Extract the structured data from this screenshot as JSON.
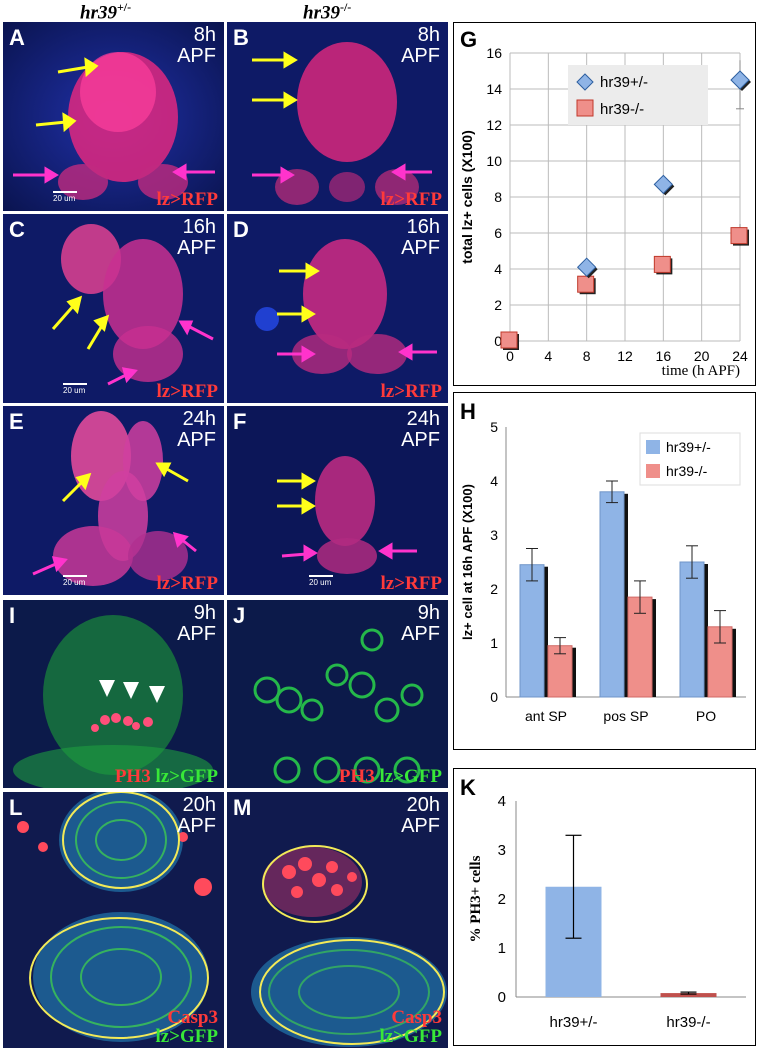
{
  "headers": {
    "left": "hr39",
    "left_sup": "+/-",
    "right": "hr39",
    "right_sup": "-/-"
  },
  "panels": {
    "A": {
      "label": "A",
      "time": "8h",
      "unit": "APF",
      "stain": "lz>RFP",
      "scale": "20 um"
    },
    "B": {
      "label": "B",
      "time": "8h",
      "unit": "APF",
      "stain": "lz>RFP"
    },
    "C": {
      "label": "C",
      "time": "16h",
      "unit": "APF",
      "stain": "lz>RFP",
      "scale": "20 um"
    },
    "D": {
      "label": "D",
      "time": "16h",
      "unit": "APF",
      "stain": "lz>RFP"
    },
    "E": {
      "label": "E",
      "time": "24h",
      "unit": "APF",
      "stain": "lz>RFP",
      "scale": "20 um"
    },
    "F": {
      "label": "F",
      "time": "24h",
      "unit": "APF",
      "stain": "lz>RFP",
      "scale": "20 um"
    },
    "I": {
      "label": "I",
      "time": "9h",
      "unit": "APF",
      "stain_red": "PH3",
      "stain_green": "lz>GFP"
    },
    "J": {
      "label": "J",
      "time": "9h",
      "unit": "APF",
      "stain_red": "PH3",
      "stain_green": "lz>GFP"
    },
    "L": {
      "label": "L",
      "time": "20h",
      "unit": "APF",
      "stain_red": "Casp3",
      "stain_green": "lz>GFP"
    },
    "M": {
      "label": "M",
      "time": "20h",
      "unit": "APF",
      "stain_red": "Casp3",
      "stain_green": "lz>GFP"
    }
  },
  "colors": {
    "het": "#8fb4e6",
    "mut": "#ef8f8a",
    "arrow_yellow": "#ffff1a",
    "arrow_magenta": "#ff33cc"
  },
  "chart_data": [
    {
      "panel": "G",
      "type": "scatter",
      "ylabel": "total lz+ cells (X100)",
      "xlabel": "time (h APF)",
      "xlim": [
        0,
        24
      ],
      "ylim": [
        0,
        16
      ],
      "xticks": [
        "0",
        "4",
        "8",
        "12",
        "16",
        "20",
        "24"
      ],
      "yticks": [
        "0",
        "2",
        "4",
        "6",
        "8",
        "10",
        "12",
        "14",
        "16"
      ],
      "grid": true,
      "legend": "top-left inside",
      "series": [
        {
          "name": "hr39+/-",
          "marker": "diamond",
          "x": [
            0,
            8,
            16,
            24
          ],
          "y": [
            0,
            4.1,
            8.7,
            14.5
          ]
        },
        {
          "name": "hr39-/-",
          "marker": "square",
          "x": [
            0,
            8,
            16,
            24
          ],
          "y": [
            0,
            3.1,
            4.2,
            5.8
          ]
        }
      ]
    },
    {
      "panel": "H",
      "type": "bar",
      "ylabel": "lz+ cell at 16h APF (X100)",
      "ylim": [
        0,
        5
      ],
      "yticks": [
        "0",
        "1",
        "2",
        "3",
        "4",
        "5"
      ],
      "categories": [
        "ant SP",
        "pos SP",
        "PO"
      ],
      "legend": "top-right",
      "series": [
        {
          "name": "hr39+/-",
          "values": [
            2.45,
            3.8,
            2.5
          ],
          "errors": [
            0.3,
            0.2,
            0.3
          ]
        },
        {
          "name": "hr39-/-",
          "values": [
            0.95,
            1.85,
            1.3
          ],
          "errors": [
            0.15,
            0.3,
            0.3
          ]
        }
      ]
    },
    {
      "panel": "K",
      "type": "bar",
      "ylabel": "% PH3+ cells",
      "ylim": [
        0,
        4
      ],
      "yticks": [
        "0",
        "1",
        "2",
        "3",
        "4"
      ],
      "categories": [
        "hr39+/-",
        "hr39-/-"
      ],
      "values": [
        2.25,
        0.08
      ],
      "errors": [
        1.05,
        0.02
      ]
    }
  ],
  "chart_labels": {
    "G": "G",
    "H": "H",
    "K": "K"
  }
}
